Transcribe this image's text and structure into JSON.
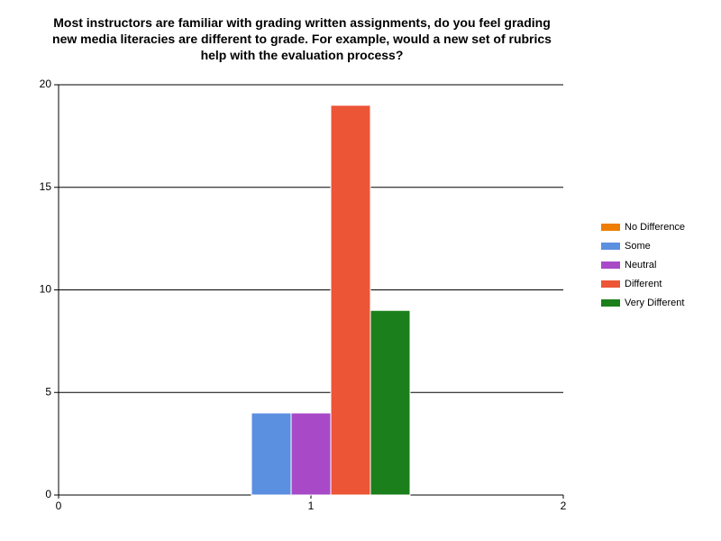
{
  "chart_data": {
    "type": "bar",
    "title": "Most instructors are familiar with grading written assignments, do you feel grading new media literacies are different to grade. For example, would a new set of rubrics help with the evaluation process?",
    "x": [
      1
    ],
    "series": [
      {
        "name": "No Difference",
        "color": "#ef7d00",
        "values": [
          0
        ]
      },
      {
        "name": "Some",
        "color": "#5b8fe0",
        "values": [
          4
        ]
      },
      {
        "name": "Neutral",
        "color": "#a84ac8",
        "values": [
          4
        ]
      },
      {
        "name": "Different",
        "color": "#ec5536",
        "values": [
          19
        ]
      },
      {
        "name": "Very Different",
        "color": "#1b7f1b",
        "values": [
          9
        ]
      }
    ],
    "xlim": [
      0,
      2
    ],
    "xticks": [
      0,
      1,
      2
    ],
    "ylim": [
      0,
      20
    ],
    "yticks": [
      0,
      5,
      10,
      15,
      20
    ],
    "grid": true,
    "legend": "right"
  }
}
